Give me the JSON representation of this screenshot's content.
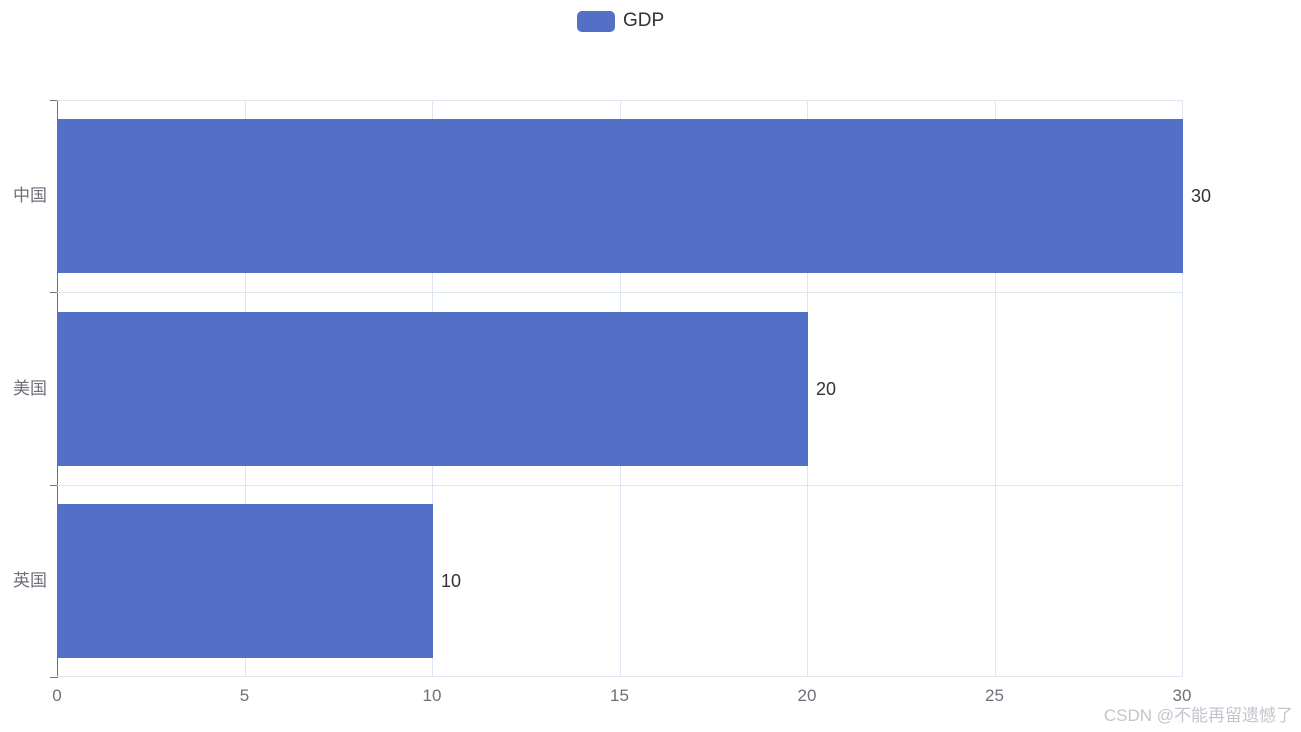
{
  "legend": {
    "label": "GDP",
    "color": "#5470C6"
  },
  "watermark": "CSDN @不能再留遗憾了",
  "chart_data": {
    "type": "bar",
    "orientation": "horizontal",
    "title": "",
    "categories": [
      "中国",
      "美国",
      "英国"
    ],
    "series": [
      {
        "name": "GDP",
        "values": [
          30,
          20,
          10
        ]
      }
    ],
    "bar_value_labels": [
      "30",
      "20",
      "10"
    ],
    "value_axis": {
      "min": 0,
      "max": 30,
      "ticks": [
        0,
        5,
        10,
        15,
        20,
        25,
        30
      ]
    },
    "grid": true,
    "legend_position": "top-center",
    "colors": {
      "bar": "#5470C6",
      "axis_line": "#6E7079",
      "axis_label": "#6E7079",
      "grid_line": "#E0E6F1",
      "value_label": "#333333"
    }
  }
}
